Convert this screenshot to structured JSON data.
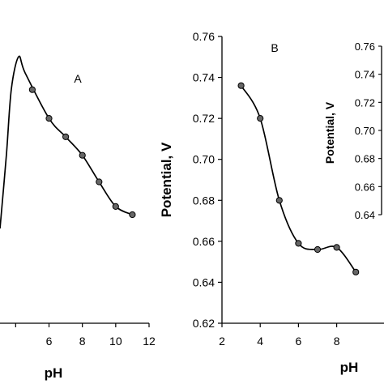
{
  "chart_data": [
    {
      "type": "line",
      "panel_label": "A",
      "xlabel": "pH",
      "ylabel": "",
      "xlim": [
        0,
        12
      ],
      "ylim": [
        0.62,
        0.76
      ],
      "xticks": [
        {
          "label": "6",
          "v": 6
        },
        {
          "label": "8",
          "v": 8
        },
        {
          "label": "10",
          "v": 10
        },
        {
          "label": "12",
          "v": 12
        }
      ],
      "series": [
        {
          "x": [
            5,
            6,
            7,
            8,
            9,
            10,
            11
          ],
          "y": [
            0.734,
            0.72,
            0.711,
            0.702,
            0.689,
            0.677,
            0.673
          ]
        }
      ],
      "line_color": "#000000",
      "marker_color": "#666666"
    },
    {
      "type": "line",
      "panel_label": "B",
      "xlabel": "pH",
      "ylabel": "Potential, V",
      "xlim": [
        2,
        12
      ],
      "ylim": [
        0.62,
        0.76
      ],
      "xticks": [
        {
          "label": "2",
          "v": 2
        },
        {
          "label": "4",
          "v": 4
        },
        {
          "label": "6",
          "v": 6
        },
        {
          "label": "8",
          "v": 8
        }
      ],
      "yticks": [
        {
          "label": "0.62",
          "v": 0.62
        },
        {
          "label": "0.64",
          "v": 0.64
        },
        {
          "label": "0.66",
          "v": 0.66
        },
        {
          "label": "0.68",
          "v": 0.68
        },
        {
          "label": "0.70",
          "v": 0.7
        },
        {
          "label": "0.72",
          "v": 0.72
        },
        {
          "label": "0.74",
          "v": 0.74
        },
        {
          "label": "0.76",
          "v": 0.76
        }
      ],
      "series": [
        {
          "x": [
            3,
            4,
            5,
            6,
            7,
            8,
            9
          ],
          "y": [
            0.736,
            0.72,
            0.68,
            0.659,
            0.656,
            0.657,
            0.645
          ]
        }
      ],
      "line_color": "#000000",
      "marker_color": "#666666"
    },
    {
      "type": "inset",
      "ylabel": "Potential, V",
      "ylim": [
        0.64,
        0.76
      ],
      "yticks": [
        {
          "label": "0.64",
          "v": 0.64
        },
        {
          "label": "0.66",
          "v": 0.66
        },
        {
          "label": "0.68",
          "v": 0.68
        },
        {
          "label": "0.70",
          "v": 0.7
        },
        {
          "label": "0.72",
          "v": 0.72
        },
        {
          "label": "0.74",
          "v": 0.74
        },
        {
          "label": "0.76",
          "v": 0.76
        }
      ]
    }
  ]
}
